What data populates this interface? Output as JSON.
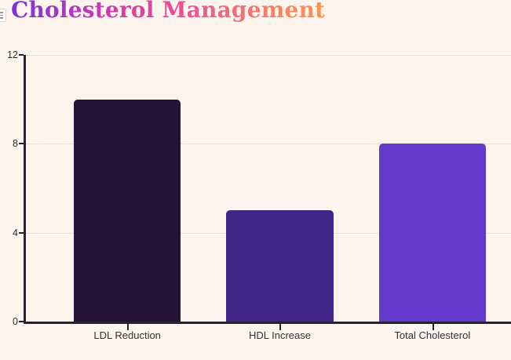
{
  "title": {
    "text": "Cholesterol Management"
  },
  "corner_icon": "list-icon",
  "chart_data": {
    "type": "bar",
    "title": "Cholesterol Management",
    "categories": [
      "LDL Reduction",
      "HDL Increase",
      "Total Cholesterol"
    ],
    "values": [
      10,
      5,
      8
    ],
    "bar_colors": [
      "#221337",
      "#3f2687",
      "#6439c9"
    ],
    "xlabel": "",
    "ylabel": "",
    "ylim": [
      0,
      12
    ],
    "yticks": [
      0,
      4,
      8,
      12
    ],
    "gridlines": [
      4,
      8,
      12
    ],
    "grid": true,
    "legend": "none",
    "background": "#fdf5ed",
    "axis_color": "#24222a",
    "gridline_color": "#e6e0d8",
    "tick_label_color": "#2c2a33",
    "title_gradient": [
      "#7c33d6",
      "#a936c8",
      "#d23caa",
      "#ea4897",
      "#f16286",
      "#f58266",
      "#f79650"
    ]
  }
}
